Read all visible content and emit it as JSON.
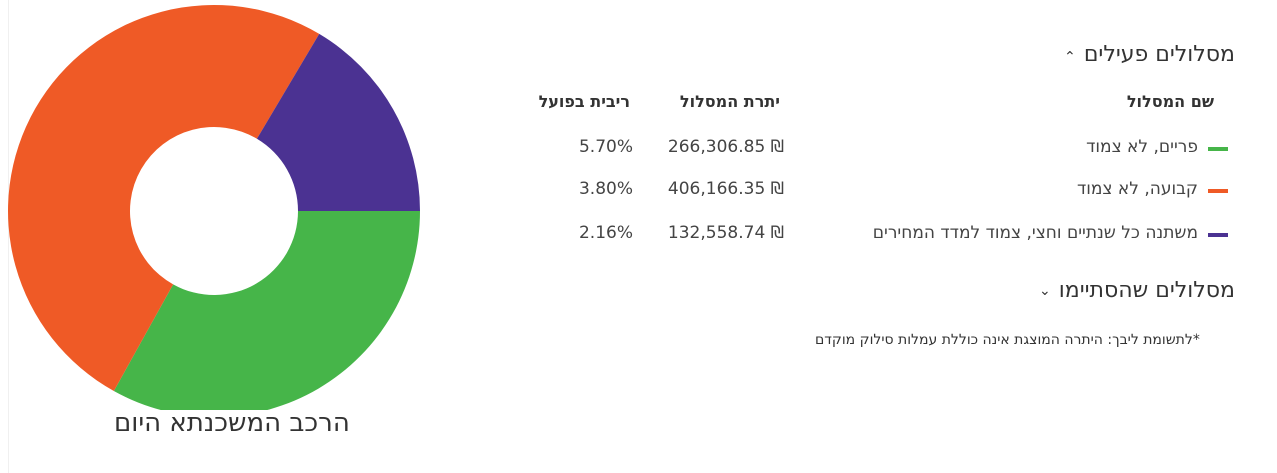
{
  "panel": {
    "active_header": "מסלולים פעילים",
    "ended_header": "מסלולים שהסתיימו",
    "columns": {
      "name": "שם המסלול",
      "balance": "יתרת המסלול",
      "rate": "ריבית בפועל"
    },
    "rows": [
      {
        "name": "פריים, לא צמוד",
        "balance": "266,306.85 ₪",
        "rate": "5.70%",
        "color": "#46b549"
      },
      {
        "name": "קבועה, לא צמוד",
        "balance": "406,166.35 ₪",
        "rate": "3.80%",
        "color": "#ef5a26"
      },
      {
        "name": "משתנה כל שנתיים וחצי, צמוד למדד המחירים",
        "balance": "132,558.74 ₪",
        "rate": "2.16%",
        "color": "#4b3292"
      }
    ],
    "note": "*לתשומת ליבך: היתרה המוצגת אינה כוללת עמלות סילוק מוקדם"
  },
  "chart_data": {
    "type": "pie",
    "title": "הרכב המשכנתא היום",
    "categories": [
      "פריים, לא צמוד",
      "קבועה, לא צמוד",
      "משתנה כל שנתיים וחצי, צמוד למדד המחירים"
    ],
    "values": [
      266306.85,
      406166.35,
      132558.74
    ],
    "colors": [
      "#46b549",
      "#ef5a26",
      "#4b3292"
    ],
    "donut": true
  }
}
